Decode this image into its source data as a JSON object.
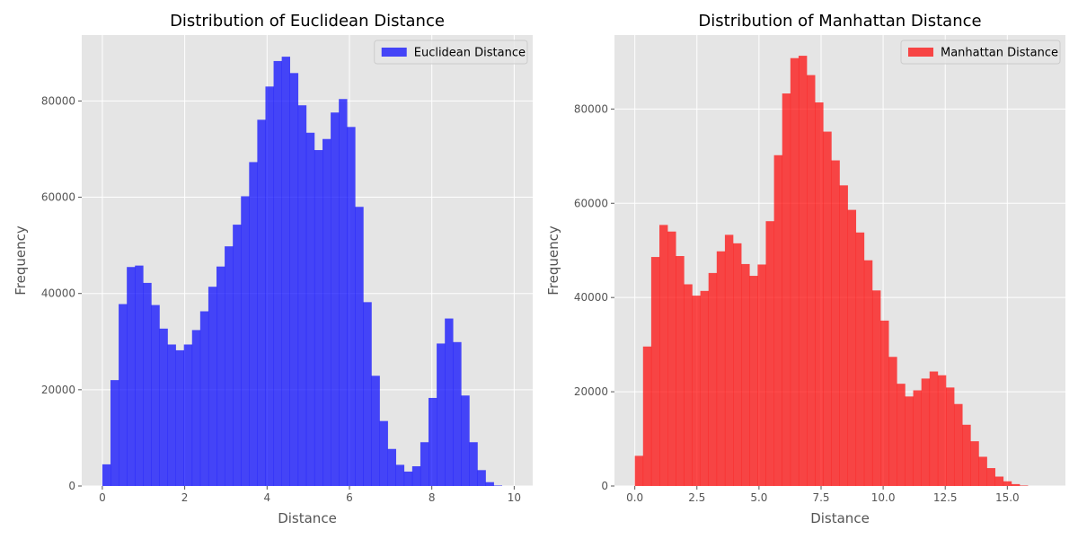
{
  "chart_data": [
    {
      "type": "bar",
      "title": "Distribution of Euclidean Distance",
      "xlabel": "Distance",
      "ylabel": "Frequency",
      "xlim": [
        -0.5,
        10.45
      ],
      "ylim": [
        0,
        93700
      ],
      "xticks": [
        0,
        2,
        4,
        6,
        8,
        10
      ],
      "xtick_labels": [
        "0",
        "2",
        "4",
        "6",
        "8",
        "10"
      ],
      "yticks": [
        0,
        20000,
        40000,
        60000,
        80000
      ],
      "ytick_labels": [
        "0",
        "20000",
        "40000",
        "60000",
        "80000"
      ],
      "grid": true,
      "legend": {
        "position": "top-right",
        "label": "Euclidean Distance"
      },
      "color": "#0000ff",
      "bin_start": 0.0,
      "bin_width": 0.198,
      "values": [
        4500,
        22000,
        37800,
        45500,
        45800,
        42200,
        37600,
        32700,
        29400,
        28200,
        29400,
        32400,
        36300,
        41400,
        45600,
        49800,
        54300,
        60200,
        67300,
        76100,
        83000,
        88300,
        89200,
        85800,
        79100,
        73400,
        69800,
        72100,
        77600,
        80400,
        74600,
        58000,
        38200,
        22900,
        13500,
        7700,
        4400,
        3000,
        4100,
        9100,
        18300,
        29600,
        34800,
        29900,
        18800,
        9100,
        3300,
        800,
        100,
        0
      ]
    },
    {
      "type": "bar",
      "title": "Distribution of Manhattan Distance",
      "xlabel": "Distance",
      "ylabel": "Frequency",
      "xlim": [
        -0.82,
        17.34
      ],
      "ylim": [
        0,
        95700
      ],
      "xticks": [
        0,
        2.5,
        5,
        7.5,
        10,
        12.5,
        15
      ],
      "xtick_labels": [
        "0.0",
        "2.5",
        "5.0",
        "7.5",
        "10.0",
        "12.5",
        "15.0"
      ],
      "yticks": [
        0,
        20000,
        40000,
        60000,
        80000
      ],
      "ytick_labels": [
        "0",
        "20000",
        "40000",
        "60000",
        "80000"
      ],
      "grid": true,
      "legend": {
        "position": "top-right",
        "label": "Manhattan Distance"
      },
      "color": "#ff0000",
      "bin_start": 0.0,
      "bin_width": 0.3297,
      "values": [
        6400,
        29600,
        48600,
        55400,
        54000,
        48800,
        42800,
        40400,
        41400,
        45200,
        49800,
        53300,
        51500,
        47100,
        44600,
        47000,
        56200,
        70200,
        83300,
        90800,
        91300,
        87200,
        81400,
        75200,
        69100,
        63800,
        58600,
        53800,
        47900,
        41500,
        35100,
        27400,
        21700,
        19000,
        20300,
        22800,
        24300,
        23500,
        20900,
        17400,
        13000,
        9500,
        6200,
        3800,
        2000,
        1000,
        400,
        100,
        0,
        0
      ]
    }
  ]
}
